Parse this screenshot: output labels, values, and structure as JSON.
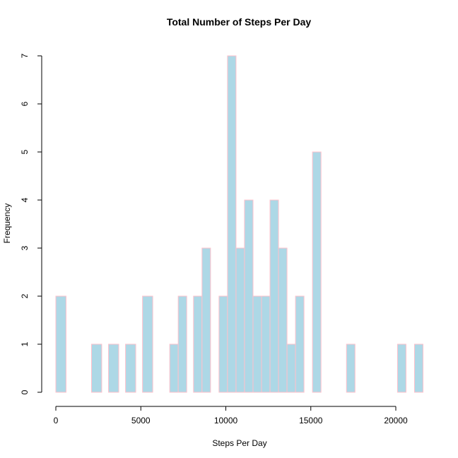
{
  "chart_data": {
    "type": "bar",
    "title": "Total Number of  Steps Per Day",
    "xlabel": "Steps Per Day",
    "ylabel": "Frequency",
    "bin_width": 600,
    "x_range": [
      0,
      21600
    ],
    "ylim": [
      0,
      7
    ],
    "x_ticks": [
      0,
      5000,
      10000,
      15000,
      20000
    ],
    "y_ticks": [
      0,
      1,
      2,
      3,
      4,
      5,
      6,
      7
    ],
    "bins": [
      {
        "start": 0,
        "end": 600,
        "count": 2
      },
      {
        "start": 2100,
        "end": 2700,
        "count": 1
      },
      {
        "start": 3100,
        "end": 3700,
        "count": 1
      },
      {
        "start": 4100,
        "end": 4700,
        "count": 1
      },
      {
        "start": 5100,
        "end": 5700,
        "count": 2
      },
      {
        "start": 6700,
        "end": 7200,
        "count": 1
      },
      {
        "start": 7200,
        "end": 7700,
        "count": 2
      },
      {
        "start": 8100,
        "end": 8600,
        "count": 2
      },
      {
        "start": 8600,
        "end": 9100,
        "count": 3
      },
      {
        "start": 9600,
        "end": 10100,
        "count": 2
      },
      {
        "start": 10100,
        "end": 10600,
        "count": 7
      },
      {
        "start": 10600,
        "end": 11100,
        "count": 3
      },
      {
        "start": 11100,
        "end": 11600,
        "count": 4
      },
      {
        "start": 11600,
        "end": 12100,
        "count": 2
      },
      {
        "start": 12100,
        "end": 12600,
        "count": 2
      },
      {
        "start": 12600,
        "end": 13100,
        "count": 4
      },
      {
        "start": 13100,
        "end": 13600,
        "count": 3
      },
      {
        "start": 13600,
        "end": 14100,
        "count": 1
      },
      {
        "start": 14100,
        "end": 14600,
        "count": 2
      },
      {
        "start": 15100,
        "end": 15600,
        "count": 5
      },
      {
        "start": 17100,
        "end": 17600,
        "count": 1
      },
      {
        "start": 20100,
        "end": 20600,
        "count": 1
      },
      {
        "start": 21100,
        "end": 21600,
        "count": 1
      }
    ],
    "bar_fill": "#add8e6",
    "bar_border": "#ffc0cb",
    "grid": false,
    "legend": "none"
  }
}
